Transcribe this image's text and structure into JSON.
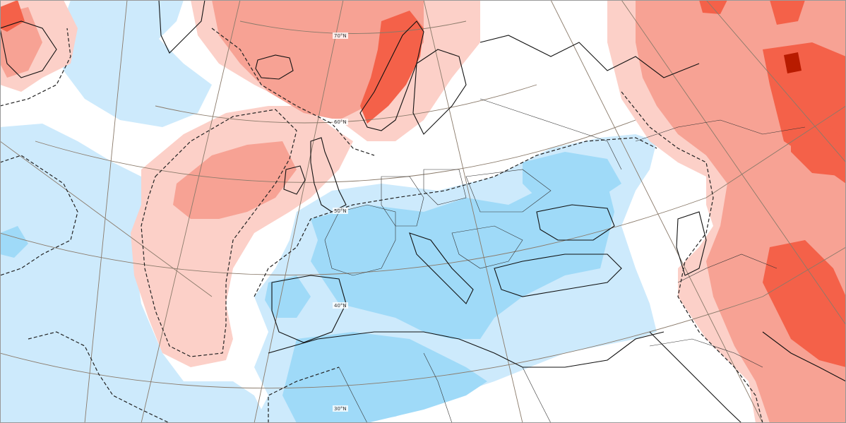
{
  "map": {
    "latitude_labels": [
      "70°N",
      "60°N",
      "50°N",
      "40°N",
      "30°N"
    ]
  },
  "colors": {
    "background": "#ffffff",
    "pos_1": "#fcd0c8",
    "pos_2": "#f7a294",
    "pos_3": "#f46149",
    "pos_4": "#b81b00",
    "neg_1": "#cdeafc",
    "neg_2": "#9fdaf8",
    "grid_line": "#8a7a6a",
    "coastline": "#111111",
    "zero_contour": "#222222"
  }
}
